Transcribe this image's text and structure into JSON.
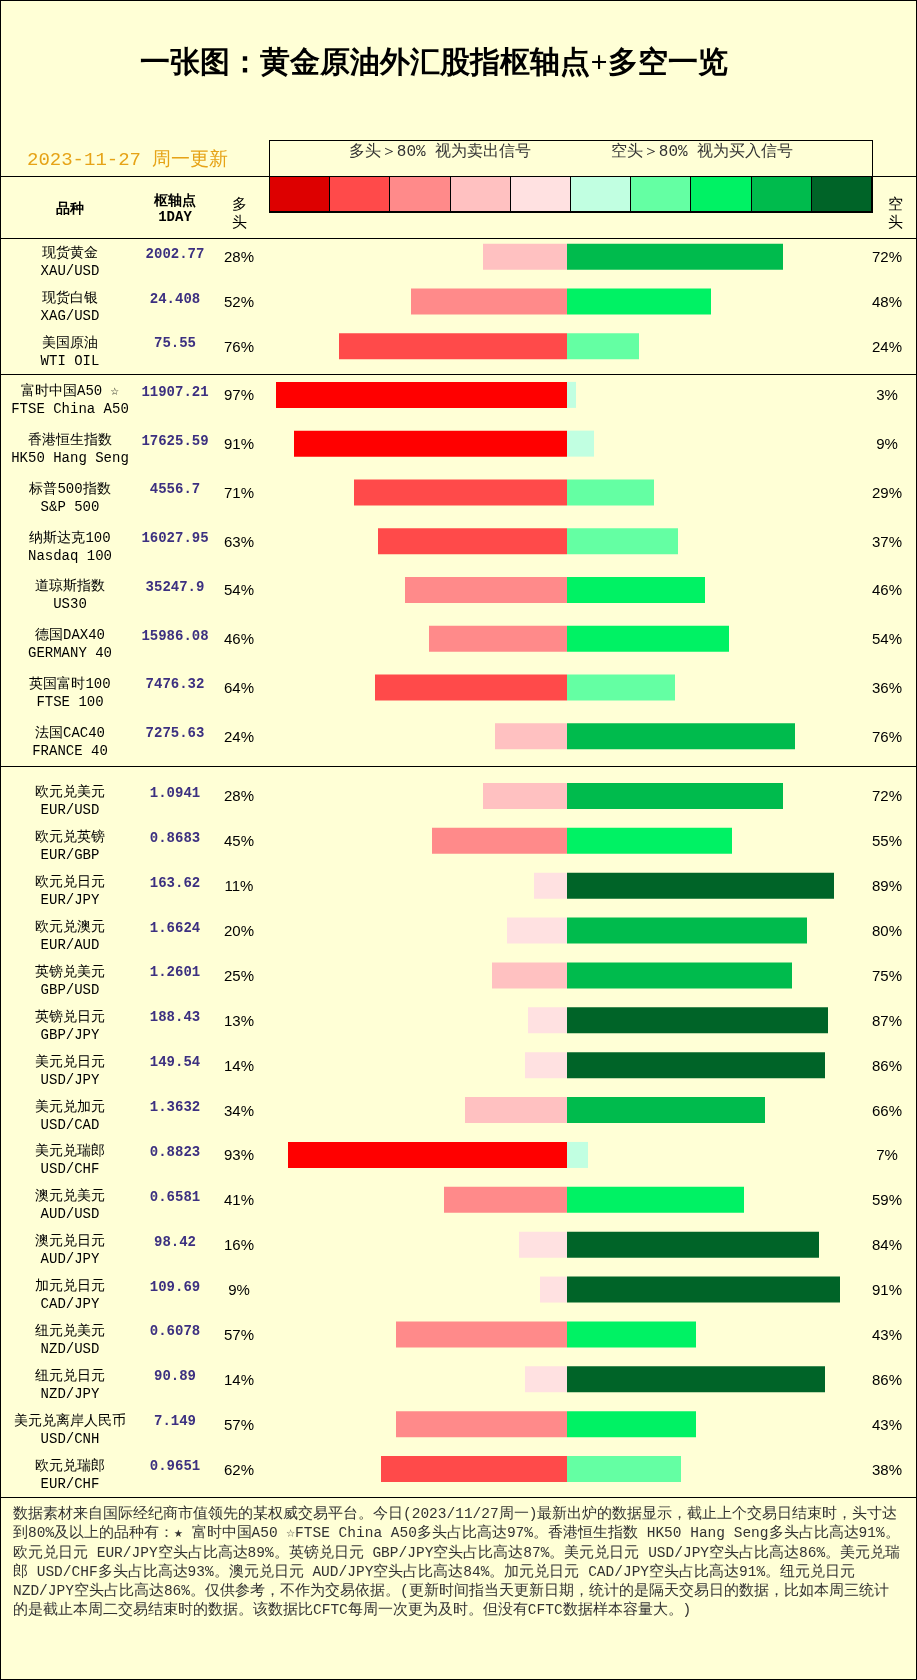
{
  "chart_data": [
    {
      "type": "bar",
      "orientation": "horizontal",
      "title": "一张图：黄金原油外汇股指枢轴点+多空一览",
      "subtitle": "2023-11-27 周一更新",
      "ylabel": "品种",
      "tick_labels": "y",
      "xlim": [
        76,
        0
      ],
      "categories": [
        "现货黄金\nXAU/USD",
        "现货白银\nXAG/USD",
        "美国原油\nWTI OIL"
      ],
      "series": [
        {
          "values": [
            28,
            52,
            76
          ],
          "colors": [
            "#ffc1c1",
            "#ff8a8a",
            "#ff4a4a"
          ],
          "value_labels": [
            "28%",
            "52%",
            "76%"
          ]
        }
      ],
      "annotations": [
        "多头＞80% 视为卖出信号",
        "空头＞80% 视为买入信号",
        "枢轴点\n1DAY",
        "多头",
        "2002.77",
        "24.408",
        "75.55"
      ]
    },
    {
      "type": "bar",
      "orientation": "horizontal",
      "tick_labels": false,
      "categories": [
        null,
        null,
        null
      ],
      "series": [
        {
          "values": [
            72,
            48,
            24
          ],
          "colors": [
            "#00bb4d",
            "#00f264",
            "#64ffa3"
          ],
          "value_labels": [
            "72%",
            "48%",
            "24%"
          ]
        }
      ],
      "annotations": [
        "空头"
      ]
    },
    {
      "type": "bar",
      "orientation": "horizontal",
      "tick_labels": "y",
      "xlim": [
        97,
        0
      ],
      "categories": [
        "富时中国A50 ☆\nFTSE China A50",
        "香港恒生指数\nHK50 Hang Seng",
        "标普500指数\nS&P 500",
        "纳斯达克100\nNasdaq 100",
        "道琼斯指数\nUS30",
        "德国DAX40\nGERMANY 40",
        "英国富时100\nFTSE 100",
        "法国CAC40\nFRANCE 40"
      ],
      "series": [
        {
          "values": [
            97,
            91,
            71,
            63,
            54,
            46,
            64,
            24
          ],
          "colors": [
            "#ff0000",
            "#ff0000",
            "#ff4a4a",
            "#ff4a4a",
            "#ff8a8a",
            "#ff8a8a",
            "#ff4a4a",
            "#ffc1c1"
          ],
          "value_labels": [
            "97%",
            "91%",
            "71%",
            "63%",
            "54%",
            "46%",
            "64%",
            "24%"
          ]
        }
      ],
      "annotations": [
        "11907.21",
        "17625.59",
        "4556.7",
        "16027.95",
        "35247.9",
        "15986.08",
        "7476.32",
        "7275.63"
      ]
    },
    {
      "type": "bar",
      "orientation": "horizontal",
      "tick_labels": false,
      "categories": [
        null,
        null,
        null,
        null,
        null,
        null,
        null,
        null
      ],
      "series": [
        {
          "values": [
            3,
            9,
            29,
            37,
            46,
            54,
            36,
            76
          ],
          "colors": [
            "#c1ffe1",
            "#c1ffe1",
            "#64ffa3",
            "#64ffa3",
            "#00f264",
            "#00f264",
            "#64ffa3",
            "#00bb4d"
          ],
          "value_labels": [
            "3%",
            "9%",
            "29%",
            "37%",
            "46%",
            "54%",
            "36%",
            "76%"
          ]
        }
      ]
    },
    {
      "type": "bar",
      "orientation": "horizontal",
      "tick_labels": "y",
      "xlim": [
        93,
        0
      ],
      "categories": [
        "欧元兑美元\nEUR/USD",
        "欧元兑英镑\nEUR/GBP",
        "欧元兑日元\nEUR/JPY",
        "欧元兑澳元\nEUR/AUD",
        "英镑兑美元\nGBP/USD",
        "英镑兑日元\nGBP/JPY",
        "美元兑日元\nUSD/JPY",
        "美元兑加元\nUSD/CAD",
        "美元兑瑞郎\nUSD/CHF",
        "澳元兑美元\nAUD/USD",
        "澳元兑日元\nAUD/JPY",
        "加元兑日元\nCAD/JPY",
        "纽元兑美元\nNZD/USD",
        "纽元兑日元\nNZD/JPY",
        "美元兑离岸人民币\nUSD/CNH",
        "欧元兑瑞郎\nEUR/CHF"
      ],
      "series": [
        {
          "values": [
            28,
            45,
            11,
            20,
            25,
            13,
            14,
            34,
            93,
            41,
            16,
            9,
            57,
            14,
            57,
            62
          ],
          "colors": [
            "#ffc1c1",
            "#ff8a8a",
            "#ffe1e1",
            "#ffe1e1",
            "#ffc1c1",
            "#ffe1e1",
            "#ffe1e1",
            "#ffc1c1",
            "#ff0000",
            "#ff8a8a",
            "#ffe1e1",
            "#ffe1e1",
            "#ff8a8a",
            "#ffe1e1",
            "#ff8a8a",
            "#ff4a4a"
          ],
          "value_labels": [
            "28%",
            "45%",
            "11%",
            "20%",
            "25%",
            "13%",
            "14%",
            "34%",
            "93%",
            "41%",
            "16%",
            "9%",
            "57%",
            "14%",
            "57%",
            "62%"
          ]
        }
      ],
      "annotations": [
        "1.0941",
        "0.8683",
        "163.62",
        "1.6624",
        "1.2601",
        "188.43",
        "149.54",
        "1.3632",
        "0.8823",
        "0.6581",
        "98.42",
        "109.69",
        "0.6078",
        "90.89",
        "7.149",
        "0.9651"
      ]
    },
    {
      "type": "bar",
      "orientation": "horizontal",
      "tick_labels": false,
      "categories": [
        null,
        null,
        null,
        null,
        null,
        null,
        null,
        null,
        null,
        null,
        null,
        null,
        null,
        null,
        null,
        null
      ],
      "series": [
        {
          "values": [
            72,
            55,
            89,
            80,
            75,
            87,
            86,
            66,
            7,
            59,
            84,
            91,
            43,
            86,
            43,
            38
          ],
          "colors": [
            "#00bb4d",
            "#00f264",
            "#006428",
            "#00bb4d",
            "#00bb4d",
            "#006428",
            "#006428",
            "#00bb4d",
            "#c1ffe1",
            "#00f264",
            "#006428",
            "#006428",
            "#00f264",
            "#006428",
            "#00f264",
            "#64ffa3"
          ],
          "value_labels": [
            "72%",
            "55%",
            "89%",
            "80%",
            "75%",
            "87%",
            "86%",
            "66%",
            "7%",
            "59%",
            "84%",
            "91%",
            "43%",
            "86%",
            "43%",
            "38%"
          ]
        }
      ],
      "annotations": [
        "数据素材来自国际经纪商市值领先的某权威交易平台。今日(2023/11/27周一)最新出炉的数据显示，截止上个交易日结束时，头寸达到80%及以上的品种有：★ 富时中国A50 ☆FTSE China A50多头占比高达97%。香港恒生指数 HK50 Hang Seng多头占比高达91%。欧元兑日元 EUR/JPY空头占比高达89%。英镑兑日元 GBP/JPY空头占比高达87%。美元兑日元 USD/JPY空头占比高达86%。美元兑瑞郎 USD/CHF多头占比高达93%。澳元兑日元 AUD/JPY空头占比高达84%。加元兑日元 CAD/JPY空头占比高达91%。纽元兑日元 NZD/JPY空头占比高达86%。仅供参考，不作为交易依据。(更新时间指当天更新日期，统计的是隔天交易日的数据，比如本周三统计的是截止本周二交易结束时的数据。该数据比CFTC每周一次更为及时。但没有CFTC数据样本容量大。)"
      ]
    }
  ]
}
